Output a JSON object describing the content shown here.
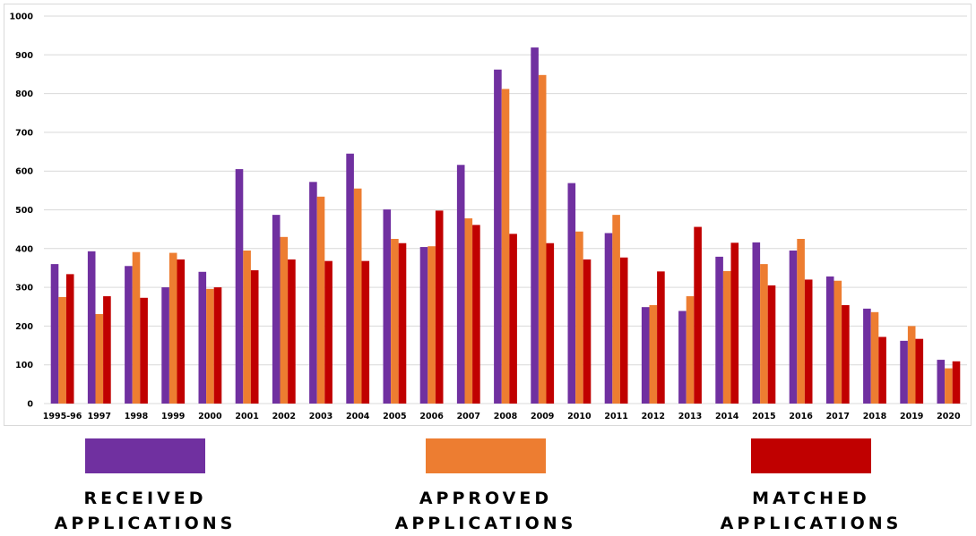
{
  "colors": {
    "received": "#7030a0",
    "approved": "#ed7d31",
    "matched": "#c00000",
    "grid": "#d9d9d9",
    "axis_text": "#000000"
  },
  "legend": {
    "received": "RECEIVED\nAPPLICATIONS",
    "approved": "APPROVED\nAPPLICATIONS",
    "matched": "MATCHED\nAPPLICATIONS"
  },
  "chart_data": {
    "type": "bar",
    "categories": [
      "1995-96",
      "1997",
      "1998",
      "1999",
      "2000",
      "2001",
      "2002",
      "2003",
      "2004",
      "2005",
      "2006",
      "2007",
      "2008",
      "2009",
      "2010",
      "2011",
      "2012",
      "2013",
      "2014",
      "2015",
      "2016",
      "2017",
      "2018",
      "2019",
      "2020"
    ],
    "series": [
      {
        "name": "RECEIVED APPLICATIONS",
        "color": "#7030a0",
        "values": [
          360,
          393,
          355,
          300,
          340,
          605,
          487,
          572,
          645,
          501,
          404,
          616,
          862,
          919,
          569,
          440,
          249,
          239,
          379,
          416,
          395,
          328,
          245,
          162,
          113
        ]
      },
      {
        "name": "APPROVED APPLICATIONS",
        "color": "#ed7d31",
        "values": [
          275,
          231,
          391,
          389,
          296,
          395,
          430,
          534,
          555,
          425,
          406,
          478,
          812,
          848,
          444,
          487,
          254,
          277,
          342,
          360,
          425,
          317,
          236,
          200,
          91
        ]
      },
      {
        "name": "MATCHED APPLICATIONS",
        "color": "#c00000",
        "values": [
          334,
          277,
          273,
          372,
          300,
          344,
          372,
          368,
          368,
          414,
          498,
          461,
          438,
          414,
          372,
          377,
          341,
          456,
          415,
          305,
          320,
          254,
          172,
          167,
          109
        ]
      }
    ],
    "ylim": [
      0,
      1000
    ],
    "yticks": [
      0,
      100,
      200,
      300,
      400,
      500,
      600,
      700,
      800,
      900,
      1000
    ],
    "grid": true,
    "legend_position": "bottom"
  }
}
